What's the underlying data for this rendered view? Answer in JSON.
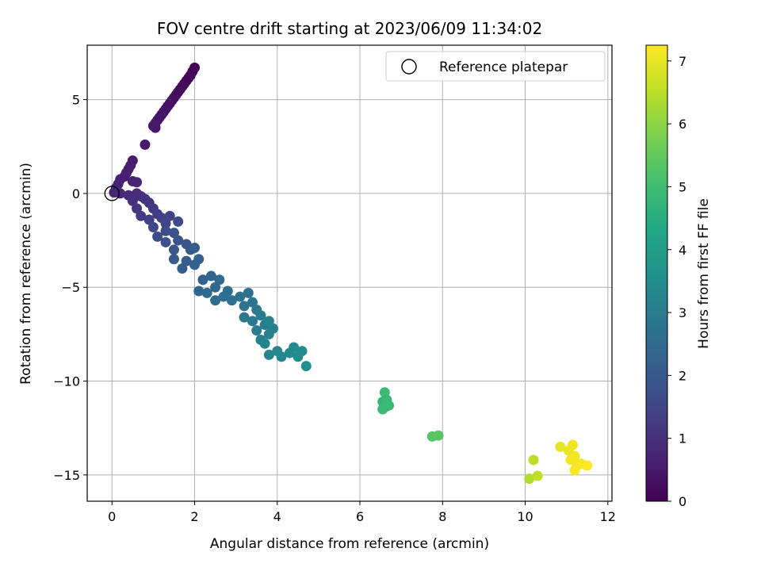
{
  "chart_data": {
    "type": "scatter",
    "title": "FOV centre drift starting at 2023/06/09 11:34:02",
    "xlabel": "Angular distance from reference (arcmin)",
    "ylabel": "Rotation from reference (arcmin)",
    "xlim": [
      -0.6,
      12.1
    ],
    "ylim": [
      -16.4,
      7.9
    ],
    "xticks": [
      0,
      2,
      4,
      6,
      8,
      10,
      12
    ],
    "yticks": [
      -15,
      -10,
      -5,
      0,
      5
    ],
    "xtick_labels": [
      "0",
      "2",
      "4",
      "6",
      "8",
      "10",
      "12"
    ],
    "ytick_labels": [
      "−15",
      "−10",
      "−5",
      "0",
      "5"
    ],
    "grid": true,
    "colorbar": {
      "label": "Hours from first FF file",
      "range": [
        0,
        7.25
      ],
      "ticks": [
        0,
        1,
        2,
        3,
        4,
        5,
        6,
        7
      ],
      "tick_labels": [
        "0",
        "1",
        "2",
        "3",
        "4",
        "5",
        "6",
        "7"
      ],
      "colormap": "viridis"
    },
    "legend": {
      "position": "top-right",
      "entries": [
        {
          "label": "Reference platepar",
          "marker": "open-circle"
        }
      ]
    },
    "reference_point": {
      "x": 0,
      "y": 0
    },
    "points": [
      [
        2.0,
        6.7,
        0.05
      ],
      [
        1.95,
        6.5,
        0.08
      ],
      [
        1.9,
        6.3,
        0.1
      ],
      [
        1.85,
        6.15,
        0.12
      ],
      [
        1.8,
        6.0,
        0.14
      ],
      [
        1.75,
        5.85,
        0.16
      ],
      [
        1.7,
        5.7,
        0.18
      ],
      [
        1.65,
        5.55,
        0.2
      ],
      [
        1.6,
        5.4,
        0.22
      ],
      [
        1.55,
        5.25,
        0.24
      ],
      [
        1.5,
        5.1,
        0.26
      ],
      [
        1.45,
        4.95,
        0.28
      ],
      [
        1.4,
        4.8,
        0.3
      ],
      [
        1.35,
        4.65,
        0.32
      ],
      [
        1.3,
        4.5,
        0.34
      ],
      [
        1.25,
        4.35,
        0.36
      ],
      [
        1.2,
        4.2,
        0.38
      ],
      [
        1.15,
        4.05,
        0.4
      ],
      [
        1.1,
        3.9,
        0.42
      ],
      [
        1.05,
        3.75,
        0.44
      ],
      [
        1.0,
        3.6,
        0.46
      ],
      [
        1.05,
        3.5,
        0.47
      ],
      [
        0.8,
        2.6,
        0.5
      ],
      [
        0.5,
        1.75,
        0.55
      ],
      [
        0.45,
        1.5,
        0.57
      ],
      [
        0.4,
        1.3,
        0.6
      ],
      [
        0.35,
        1.1,
        0.62
      ],
      [
        0.3,
        0.9,
        0.64
      ],
      [
        0.2,
        0.75,
        0.66
      ],
      [
        0.15,
        0.5,
        0.68
      ],
      [
        0.1,
        0.3,
        0.7
      ],
      [
        0.5,
        0.65,
        0.72
      ],
      [
        0.6,
        0.6,
        0.74
      ],
      [
        0.05,
        0.05,
        0.76
      ],
      [
        0.2,
        0.0,
        0.8
      ],
      [
        0.4,
        -0.1,
        0.85
      ],
      [
        0.6,
        0.0,
        0.9
      ],
      [
        0.7,
        -0.15,
        0.95
      ],
      [
        0.5,
        -0.4,
        1.0
      ],
      [
        0.8,
        -0.3,
        1.05
      ],
      [
        0.9,
        -0.5,
        1.1
      ],
      [
        0.6,
        -0.8,
        1.15
      ],
      [
        1.0,
        -0.8,
        1.2
      ],
      [
        0.7,
        -1.2,
        1.25
      ],
      [
        1.1,
        -1.1,
        1.3
      ],
      [
        0.9,
        -1.4,
        1.35
      ],
      [
        1.2,
        -1.3,
        1.4
      ],
      [
        1.4,
        -1.2,
        1.45
      ],
      [
        1.3,
        -1.6,
        1.5
      ],
      [
        1.0,
        -1.8,
        1.55
      ],
      [
        1.6,
        -1.5,
        1.6
      ],
      [
        1.3,
        -2.0,
        1.65
      ],
      [
        1.1,
        -2.3,
        1.7
      ],
      [
        1.5,
        -2.1,
        1.75
      ],
      [
        1.3,
        -2.6,
        1.8
      ],
      [
        1.6,
        -2.5,
        1.85
      ],
      [
        1.8,
        -2.7,
        1.9
      ],
      [
        1.5,
        -3.0,
        1.95
      ],
      [
        1.9,
        -3.0,
        2.0
      ],
      [
        1.5,
        -3.5,
        2.05
      ],
      [
        1.8,
        -3.6,
        2.1
      ],
      [
        2.0,
        -2.9,
        2.12
      ],
      [
        1.7,
        -4.0,
        2.15
      ],
      [
        2.0,
        -3.8,
        2.2
      ],
      [
        2.1,
        -3.5,
        2.22
      ],
      [
        2.2,
        -4.6,
        2.3
      ],
      [
        2.4,
        -4.4,
        2.35
      ],
      [
        2.1,
        -5.2,
        2.4
      ],
      [
        2.5,
        -5.0,
        2.45
      ],
      [
        2.6,
        -4.6,
        2.48
      ],
      [
        2.3,
        -5.3,
        2.5
      ],
      [
        2.5,
        -5.7,
        2.55
      ],
      [
        2.7,
        -5.5,
        2.6
      ],
      [
        2.8,
        -5.2,
        2.62
      ],
      [
        2.9,
        -5.7,
        2.66
      ],
      [
        3.1,
        -5.5,
        2.7
      ],
      [
        3.3,
        -5.3,
        2.74
      ],
      [
        3.2,
        -6.0,
        2.78
      ],
      [
        3.4,
        -5.8,
        2.82
      ],
      [
        3.5,
        -6.2,
        2.86
      ],
      [
        3.2,
        -6.6,
        2.9
      ],
      [
        3.4,
        -6.8,
        2.94
      ],
      [
        3.6,
        -6.5,
        2.98
      ],
      [
        3.7,
        -7.0,
        3.02
      ],
      [
        3.5,
        -7.3,
        3.06
      ],
      [
        3.8,
        -7.5,
        3.1
      ],
      [
        3.6,
        -7.8,
        3.14
      ],
      [
        3.9,
        -7.2,
        3.18
      ],
      [
        3.8,
        -6.8,
        3.2
      ],
      [
        3.7,
        -8.0,
        3.24
      ],
      [
        3.8,
        -8.6,
        3.28
      ],
      [
        4.0,
        -8.4,
        3.32
      ],
      [
        4.1,
        -8.7,
        3.36
      ],
      [
        4.3,
        -8.5,
        3.4
      ],
      [
        4.4,
        -8.2,
        3.44
      ],
      [
        4.5,
        -8.7,
        3.48
      ],
      [
        4.6,
        -8.4,
        3.52
      ],
      [
        4.7,
        -9.2,
        3.6
      ],
      [
        6.55,
        -11.1,
        4.8
      ],
      [
        6.6,
        -11.4,
        4.82
      ],
      [
        6.65,
        -11.0,
        4.84
      ],
      [
        6.7,
        -11.3,
        4.86
      ],
      [
        6.6,
        -10.6,
        4.88
      ],
      [
        6.55,
        -11.5,
        4.9
      ],
      [
        7.75,
        -12.95,
        5.3
      ],
      [
        7.9,
        -12.9,
        5.35
      ],
      [
        10.1,
        -15.2,
        6.4
      ],
      [
        10.2,
        -14.2,
        6.5
      ],
      [
        10.3,
        -15.05,
        6.55
      ],
      [
        10.85,
        -13.5,
        7.0
      ],
      [
        11.05,
        -13.7,
        7.05
      ],
      [
        11.15,
        -13.4,
        7.1
      ],
      [
        11.2,
        -14.0,
        7.12
      ],
      [
        11.1,
        -14.2,
        7.15
      ],
      [
        11.25,
        -14.5,
        7.18
      ],
      [
        11.2,
        -14.75,
        7.2
      ],
      [
        11.35,
        -14.4,
        7.22
      ],
      [
        11.5,
        -14.5,
        7.24
      ]
    ]
  }
}
